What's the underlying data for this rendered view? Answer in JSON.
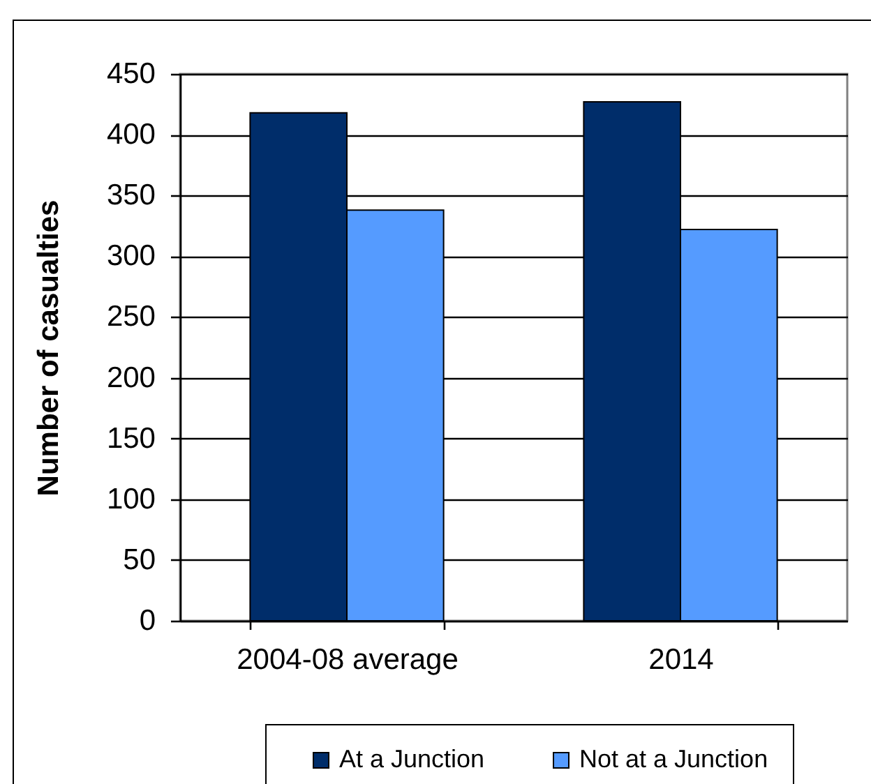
{
  "chart_data": {
    "type": "bar",
    "ylabel": "Number of casualties",
    "categories": [
      "2004-08 average",
      "2014"
    ],
    "series": [
      {
        "name": "At a Junction",
        "color": "#002d6a",
        "values": [
          418,
          427
        ]
      },
      {
        "name": "Not at a Junction",
        "color": "#559bff",
        "values": [
          338,
          322
        ]
      }
    ],
    "ylim": [
      0,
      450
    ],
    "yticks": [
      0,
      50,
      100,
      150,
      200,
      250,
      300,
      350,
      400,
      450
    ],
    "grid": "y",
    "legend": "bottom"
  }
}
